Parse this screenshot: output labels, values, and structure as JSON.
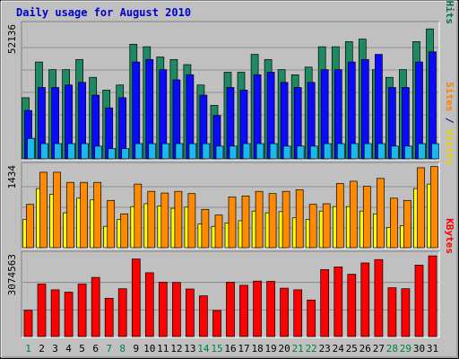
{
  "chart_data": {
    "type": "bar",
    "title": "Daily usage for August 2010",
    "categories": [
      "1",
      "2",
      "3",
      "4",
      "5",
      "6",
      "7",
      "8",
      "9",
      "10",
      "11",
      "12",
      "13",
      "14",
      "15",
      "16",
      "17",
      "18",
      "19",
      "20",
      "21",
      "22",
      "23",
      "24",
      "25",
      "26",
      "27",
      "28",
      "29",
      "30",
      "31"
    ],
    "weekend_days": [
      "1",
      "7",
      "8",
      "14",
      "15",
      "21",
      "22",
      "28",
      "29"
    ],
    "panels": [
      {
        "name": "pages-files-hits",
        "max_label": "52136",
        "ymax": 52136,
        "side_labels": [
          {
            "text": "Pages",
            "color": "#00a0ff"
          },
          {
            "text": " / ",
            "color": "#000080"
          },
          {
            "text": "Files",
            "color": "#0000e0"
          },
          {
            "text": " / ",
            "color": "#000080"
          },
          {
            "text": "Hits",
            "color": "#007050"
          }
        ],
        "series": [
          {
            "name": "Hits",
            "color": "#1e8a62",
            "values": [
              24000,
              38000,
              35000,
              35000,
              39000,
              32000,
              27000,
              29000,
              45000,
              44000,
              40000,
              39000,
              37000,
              29000,
              21000,
              34000,
              34000,
              41000,
              39000,
              35000,
              33000,
              36000,
              44000,
              44000,
              46000,
              47000,
              35000,
              32000,
              35000,
              46000,
              51000
            ]
          },
          {
            "name": "Files",
            "color": "#0a0aff",
            "values": [
              19000,
              28000,
              28000,
              29000,
              30000,
              25000,
              20000,
              24000,
              38000,
              39000,
              35000,
              31000,
              33000,
              25000,
              17000,
              28000,
              27000,
              33000,
              34000,
              30000,
              28000,
              30000,
              35000,
              35000,
              38000,
              39000,
              41000,
              28000,
              28000,
              38000,
              42000
            ]
          },
          {
            "name": "Pages",
            "color": "#19b8ef",
            "values": [
              8000,
              6000,
              6000,
              6000,
              6000,
              5000,
              4000,
              4000,
              6000,
              6000,
              6000,
              6000,
              6000,
              6000,
              5000,
              5000,
              6000,
              6000,
              6000,
              5000,
              5000,
              5000,
              6000,
              6000,
              6000,
              6000,
              6000,
              5000,
              5000,
              6000,
              6000
            ]
          }
        ]
      },
      {
        "name": "sites-visits",
        "max_label": "1434",
        "ymax": 1434,
        "side_labels": [
          {
            "text": "Sites",
            "color": "#ff8000"
          },
          {
            "text": " / ",
            "color": "#000080"
          },
          {
            "text": "Visits",
            "color": "#e8d800"
          }
        ],
        "series": [
          {
            "name": "Visits",
            "color": "#ffff00",
            "values": [
              500,
              1050,
              950,
              620,
              880,
              850,
              380,
              500,
              730,
              780,
              740,
              700,
              720,
              420,
              380,
              440,
              480,
              650,
              620,
              640,
              530,
              500,
              650,
              730,
              730,
              650,
              600,
              360,
              390,
              1050,
              1130
            ]
          },
          {
            "name": "Sites",
            "color": "#ff8a00",
            "values": [
              770,
              1340,
              1340,
              1160,
              1160,
              1160,
              840,
              600,
              1130,
              1000,
              970,
              1000,
              960,
              680,
              580,
              900,
              920,
              1000,
              960,
              1000,
              1030,
              770,
              780,
              1140,
              1180,
              1090,
              1230,
              880,
              840,
              1420,
              1440
            ]
          }
        ]
      },
      {
        "name": "kbytes",
        "max_label": "3074563",
        "ymax": 3074563,
        "side_labels": [
          {
            "text": "KBytes",
            "color": "#ff0000"
          }
        ],
        "series": [
          {
            "name": "KBytes",
            "color": "#ff0000",
            "values": [
              1000000,
              2000000,
              1780000,
              1690000,
              2000000,
              2250000,
              1460000,
              1820000,
              2950000,
              2430000,
              2070000,
              2060000,
              1810000,
              1550000,
              990000,
              2070000,
              1950000,
              2110000,
              2100000,
              1840000,
              1780000,
              1390000,
              2550000,
              2650000,
              2370000,
              2800000,
              2930000,
              1860000,
              1820000,
              2720000,
              3070000
            ]
          }
        ]
      }
    ]
  }
}
